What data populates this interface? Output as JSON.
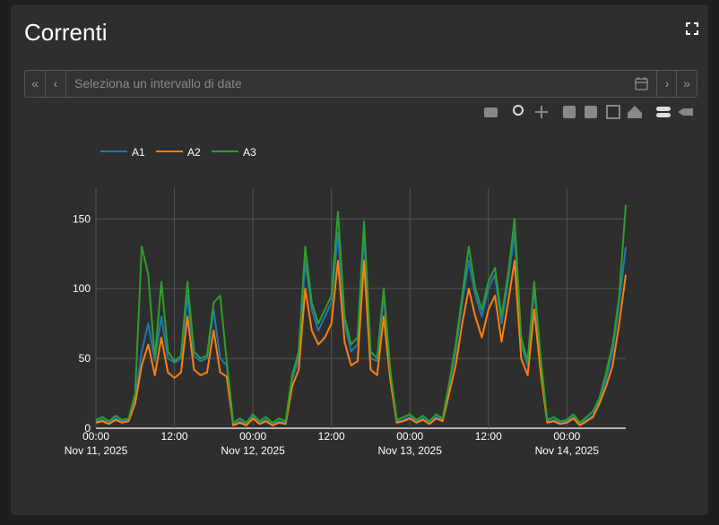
{
  "title": "Correnti",
  "date_picker": {
    "placeholder": "Seleziona un intervallo di date",
    "nav": [
      "«",
      "‹",
      "›",
      "»"
    ]
  },
  "chart_data": {
    "type": "line",
    "x": [
      "2025-11-11 00:00",
      "2025-11-11 01:00",
      "2025-11-11 02:00",
      "2025-11-11 03:00",
      "2025-11-11 04:00",
      "2025-11-11 05:00",
      "2025-11-11 06:00",
      "2025-11-11 07:00",
      "2025-11-11 08:00",
      "2025-11-11 09:00",
      "2025-11-11 10:00",
      "2025-11-11 11:00",
      "2025-11-11 12:00",
      "2025-11-11 13:00",
      "2025-11-11 14:00",
      "2025-11-11 15:00",
      "2025-11-11 16:00",
      "2025-11-11 17:00",
      "2025-11-11 18:00",
      "2025-11-11 19:00",
      "2025-11-11 20:00",
      "2025-11-11 21:00",
      "2025-11-11 22:00",
      "2025-11-11 23:00",
      "2025-11-12 00:00",
      "2025-11-12 01:00",
      "2025-11-12 02:00",
      "2025-11-12 03:00",
      "2025-11-12 04:00",
      "2025-11-12 05:00",
      "2025-11-12 06:00",
      "2025-11-12 07:00",
      "2025-11-12 08:00",
      "2025-11-12 09:00",
      "2025-11-12 10:00",
      "2025-11-12 11:00",
      "2025-11-12 12:00",
      "2025-11-12 13:00",
      "2025-11-12 14:00",
      "2025-11-12 15:00",
      "2025-11-12 16:00",
      "2025-11-12 17:00",
      "2025-11-12 18:00",
      "2025-11-12 19:00",
      "2025-11-12 20:00",
      "2025-11-12 21:00",
      "2025-11-12 22:00",
      "2025-11-12 23:00",
      "2025-11-13 00:00",
      "2025-11-13 01:00",
      "2025-11-13 02:00",
      "2025-11-13 03:00",
      "2025-11-13 04:00",
      "2025-11-13 05:00",
      "2025-11-13 06:00",
      "2025-11-13 07:00",
      "2025-11-13 08:00",
      "2025-11-13 09:00",
      "2025-11-13 10:00",
      "2025-11-13 11:00",
      "2025-11-13 12:00",
      "2025-11-13 13:00",
      "2025-11-13 14:00",
      "2025-11-13 15:00",
      "2025-11-13 16:00",
      "2025-11-13 17:00",
      "2025-11-13 18:00",
      "2025-11-13 19:00",
      "2025-11-13 20:00",
      "2025-11-13 21:00",
      "2025-11-13 22:00",
      "2025-11-13 23:00",
      "2025-11-14 00:00",
      "2025-11-14 01:00",
      "2025-11-14 02:00",
      "2025-11-14 03:00",
      "2025-11-14 04:00",
      "2025-11-14 05:00",
      "2025-11-14 06:00",
      "2025-11-14 07:00",
      "2025-11-14 08:00",
      "2025-11-14 09:00"
    ],
    "series": [
      {
        "name": "A1",
        "color": "#1f77b4",
        "values": [
          5,
          6,
          4,
          7,
          5,
          6,
          20,
          55,
          75,
          48,
          80,
          50,
          47,
          50,
          95,
          52,
          48,
          50,
          85,
          50,
          45,
          3,
          5,
          3,
          8,
          4,
          6,
          3,
          5,
          4,
          35,
          50,
          120,
          85,
          70,
          80,
          90,
          140,
          75,
          55,
          60,
          140,
          50,
          48,
          95,
          40,
          5,
          6,
          8,
          5,
          7,
          4,
          8,
          6,
          30,
          55,
          90,
          120,
          95,
          80,
          100,
          110,
          75,
          105,
          140,
          60,
          45,
          100,
          48,
          5,
          6,
          4,
          5,
          8,
          3,
          6,
          9,
          20,
          35,
          55,
          90,
          130
        ]
      },
      {
        "name": "A2",
        "color": "#ff7f0e",
        "values": [
          4,
          5,
          3,
          6,
          4,
          5,
          18,
          45,
          60,
          38,
          65,
          40,
          36,
          40,
          80,
          42,
          38,
          40,
          70,
          40,
          37,
          2,
          4,
          2,
          7,
          3,
          5,
          2,
          4,
          3,
          30,
          42,
          100,
          70,
          60,
          65,
          75,
          120,
          62,
          45,
          48,
          120,
          42,
          38,
          80,
          35,
          4,
          5,
          7,
          4,
          6,
          3,
          7,
          5,
          25,
          45,
          75,
          100,
          80,
          65,
          85,
          95,
          62,
          90,
          120,
          50,
          38,
          85,
          40,
          4,
          5,
          3,
          4,
          7,
          2,
          5,
          8,
          18,
          30,
          45,
          75,
          110
        ]
      },
      {
        "name": "A3",
        "color": "#2ca02c",
        "values": [
          6,
          8,
          5,
          9,
          6,
          7,
          25,
          130,
          110,
          50,
          105,
          55,
          48,
          52,
          105,
          55,
          50,
          52,
          90,
          95,
          48,
          4,
          7,
          4,
          10,
          5,
          8,
          4,
          7,
          5,
          38,
          55,
          130,
          90,
          75,
          85,
          95,
          155,
          80,
          60,
          65,
          148,
          55,
          50,
          100,
          42,
          6,
          8,
          10,
          6,
          9,
          5,
          10,
          7,
          32,
          60,
          95,
          130,
          100,
          85,
          105,
          115,
          80,
          110,
          150,
          65,
          48,
          105,
          50,
          6,
          8,
          5,
          6,
          10,
          4,
          8,
          12,
          22,
          40,
          60,
          95,
          160
        ]
      }
    ],
    "xlim": [
      "2025-11-11 00:00",
      "2025-11-14 09:00"
    ],
    "xticks": [
      {
        "value": "2025-11-11 00:00",
        "label": [
          "00:00",
          "Nov 11, 2025"
        ]
      },
      {
        "value": "2025-11-11 12:00",
        "label": [
          "12:00"
        ]
      },
      {
        "value": "2025-11-12 00:00",
        "label": [
          "00:00",
          "Nov 12, 2025"
        ]
      },
      {
        "value": "2025-11-12 12:00",
        "label": [
          "12:00"
        ]
      },
      {
        "value": "2025-11-13 00:00",
        "label": [
          "00:00",
          "Nov 13, 2025"
        ]
      },
      {
        "value": "2025-11-13 12:00",
        "label": [
          "12:00"
        ]
      },
      {
        "value": "2025-11-14 00:00",
        "label": [
          "00:00",
          "Nov 14, 2025"
        ]
      }
    ],
    "ylim": [
      0,
      172
    ],
    "yticks": [
      0,
      50,
      100,
      150
    ],
    "grid": true,
    "legend": "top-left"
  }
}
